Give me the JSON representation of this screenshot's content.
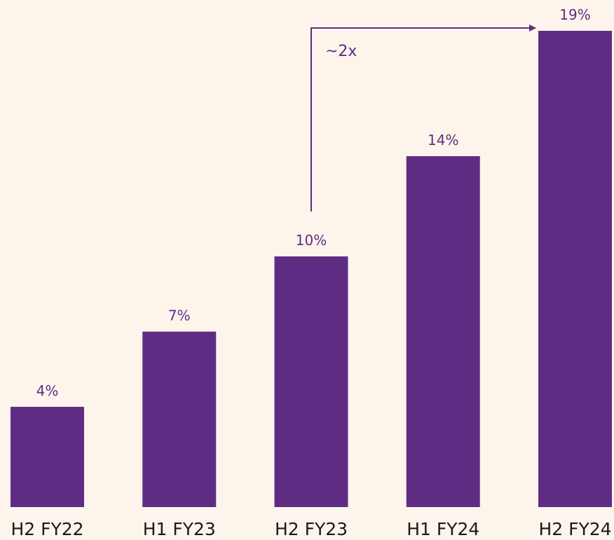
{
  "chart_data": {
    "type": "bar",
    "categories": [
      "H2 FY22",
      "H1 FY23",
      "H2 FY23",
      "H1 FY24",
      "H2 FY24"
    ],
    "values": [
      4,
      7,
      10,
      14,
      19
    ],
    "value_labels": [
      "4%",
      "7%",
      "10%",
      "14%",
      "19%"
    ],
    "color": "#5e2d83",
    "ylim": [
      0,
      19
    ],
    "annotation": "~2x"
  }
}
